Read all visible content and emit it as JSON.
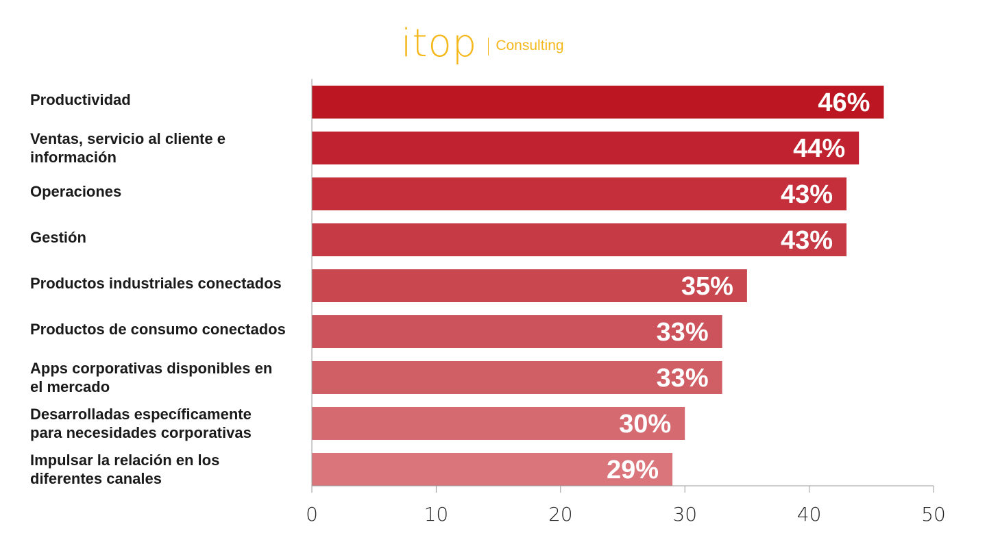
{
  "brand": {
    "logo_text": "itop",
    "logo_sub": "Consulting",
    "color": "#f5b81c"
  },
  "chart_data": {
    "type": "bar",
    "orientation": "horizontal",
    "categories": [
      "Productividad",
      "Ventas, servicio al cliente e información",
      "Operaciones",
      "Gestión",
      "Productos industriales conectados",
      "Productos de consumo conectados",
      "Apps corporativas disponibles en el mercado",
      "Desarrolladas específicamente para necesidades corporativas",
      "Impulsar la relación en los diferentes canales"
    ],
    "category_lines": [
      [
        "Productividad"
      ],
      [
        "Ventas, servicio al cliente e",
        "información"
      ],
      [
        "Operaciones"
      ],
      [
        "Gestión"
      ],
      [
        "Productos industriales conectados"
      ],
      [
        "Productos de consumo conectados"
      ],
      [
        "Apps corporativas disponibles en",
        "el mercado"
      ],
      [
        "Desarrolladas específicamente",
        "para necesidades corporativas"
      ],
      [
        "Impulsar la relación en los",
        "diferentes canales"
      ]
    ],
    "values": [
      46,
      44,
      43,
      43,
      35,
      33,
      33,
      30,
      29
    ],
    "data_labels": [
      "46%",
      "44%",
      "43%",
      "43%",
      "35%",
      "33%",
      "33%",
      "30%",
      "29%"
    ],
    "bar_colors": [
      "#bb1622",
      "#c0232f",
      "#c42f3b",
      "#c63a45",
      "#c9474f",
      "#cc535b",
      "#cf5e65",
      "#d56a71",
      "#d9757b"
    ],
    "xlim": [
      0,
      50
    ],
    "xticks": [
      "0",
      "10",
      "20",
      "30",
      "40",
      "50"
    ],
    "title": "",
    "xlabel": "",
    "ylabel": "",
    "grid": false,
    "legend": "none"
  }
}
